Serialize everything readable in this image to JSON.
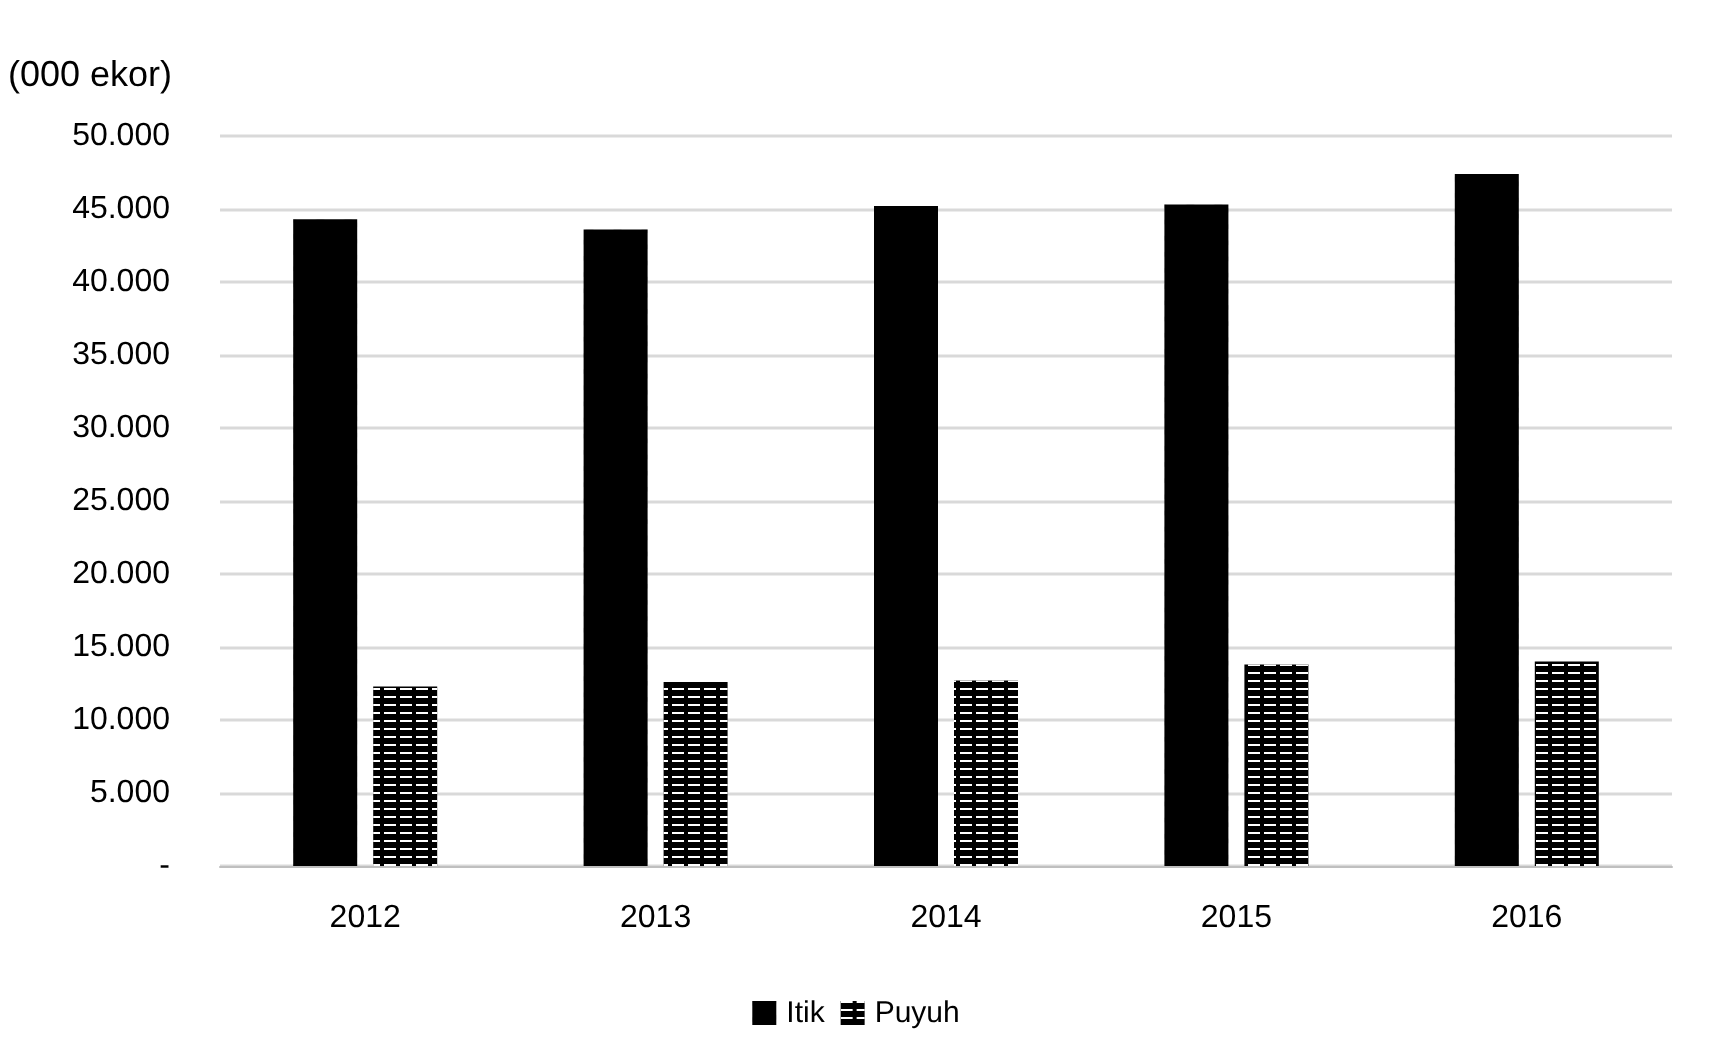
{
  "chart_data": {
    "type": "bar",
    "ylabel": "(000 ekor)",
    "categories": [
      "2012",
      "2013",
      "2014",
      "2015",
      "2016"
    ],
    "series": [
      {
        "name": "Itik",
        "color": "#000000",
        "values": [
          44300,
          43600,
          45200,
          45300,
          47400
        ]
      },
      {
        "name": "Puyuh",
        "color": "#000000",
        "values": [
          12300,
          12600,
          12700,
          13800,
          14000
        ]
      }
    ],
    "ylim": [
      0,
      50000
    ],
    "yticks": [
      {
        "value": 0,
        "label": "-"
      },
      {
        "value": 5000,
        "label": "5.000"
      },
      {
        "value": 10000,
        "label": "10.000"
      },
      {
        "value": 15000,
        "label": "15.000"
      },
      {
        "value": 20000,
        "label": "20.000"
      },
      {
        "value": 25000,
        "label": "25.000"
      },
      {
        "value": 30000,
        "label": "30.000"
      },
      {
        "value": 35000,
        "label": "35.000"
      },
      {
        "value": 40000,
        "label": "40.000"
      },
      {
        "value": 45000,
        "label": "45.000"
      },
      {
        "value": 50000,
        "label": "50.000"
      }
    ],
    "grid": "y",
    "legend": "bottom"
  }
}
